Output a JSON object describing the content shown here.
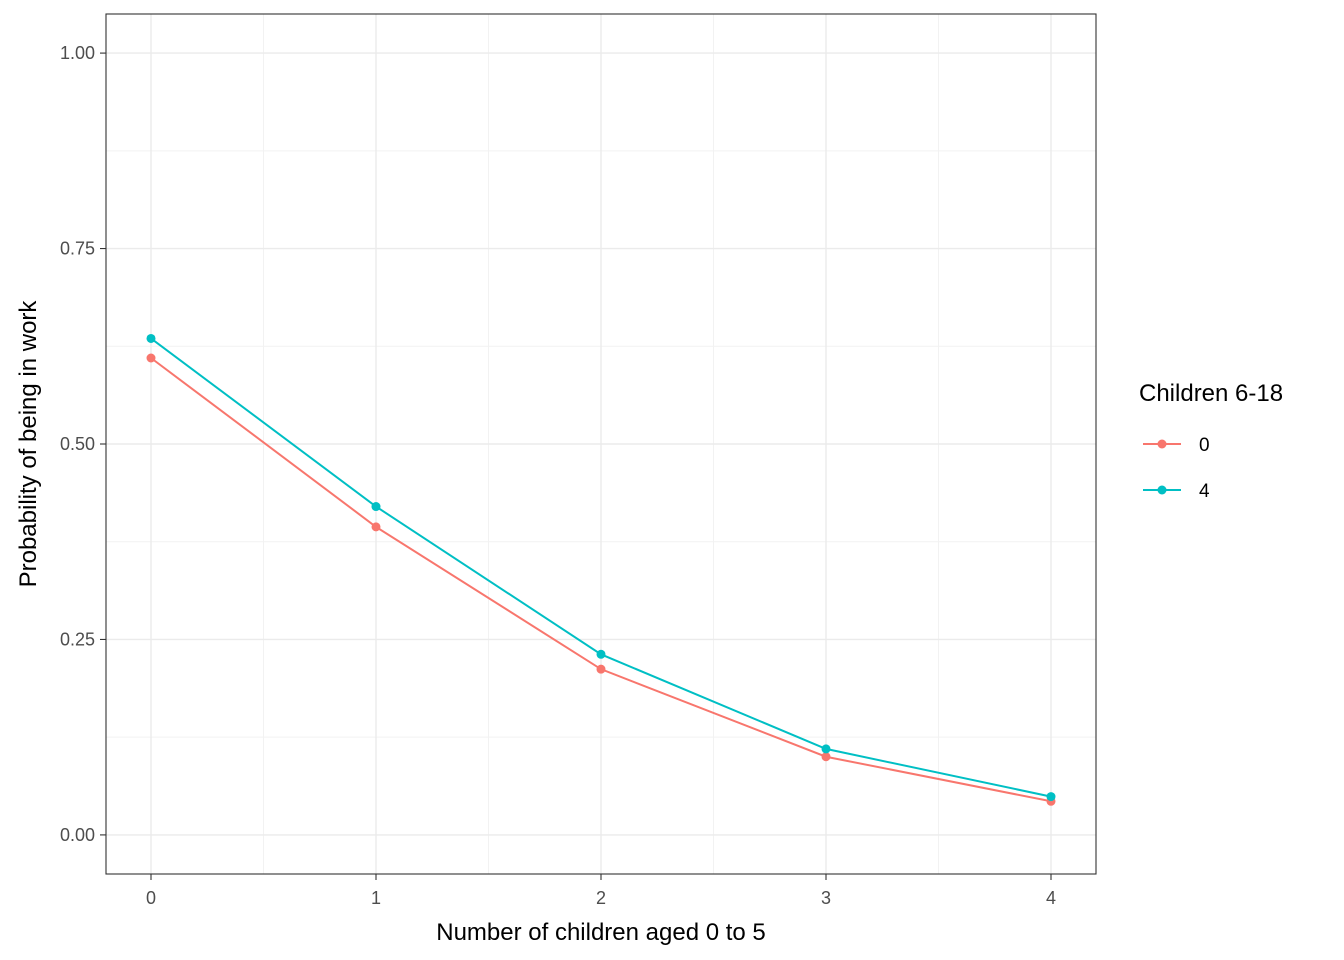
{
  "chart_data": {
    "type": "line",
    "title": "",
    "xlabel": "Number of children aged 0 to 5",
    "ylabel": "Probability of being in work",
    "x": [
      0,
      1,
      2,
      3,
      4
    ],
    "x_ticks": [
      "0",
      "1",
      "2",
      "3",
      "4"
    ],
    "y_ticks": [
      "0.00",
      "0.25",
      "0.50",
      "0.75",
      "1.00"
    ],
    "xlim": [
      -0.2,
      4.2
    ],
    "ylim": [
      -0.05,
      1.05
    ],
    "grid": true,
    "legend": {
      "title": "Children 6-18",
      "placement": "right"
    },
    "series": [
      {
        "name": "0",
        "color": "#F8766D",
        "values": [
          0.61,
          0.394,
          0.212,
          0.1,
          0.043
        ]
      },
      {
        "name": "4",
        "color": "#00BFC4",
        "values": [
          0.635,
          0.42,
          0.231,
          0.11,
          0.049
        ]
      }
    ]
  }
}
